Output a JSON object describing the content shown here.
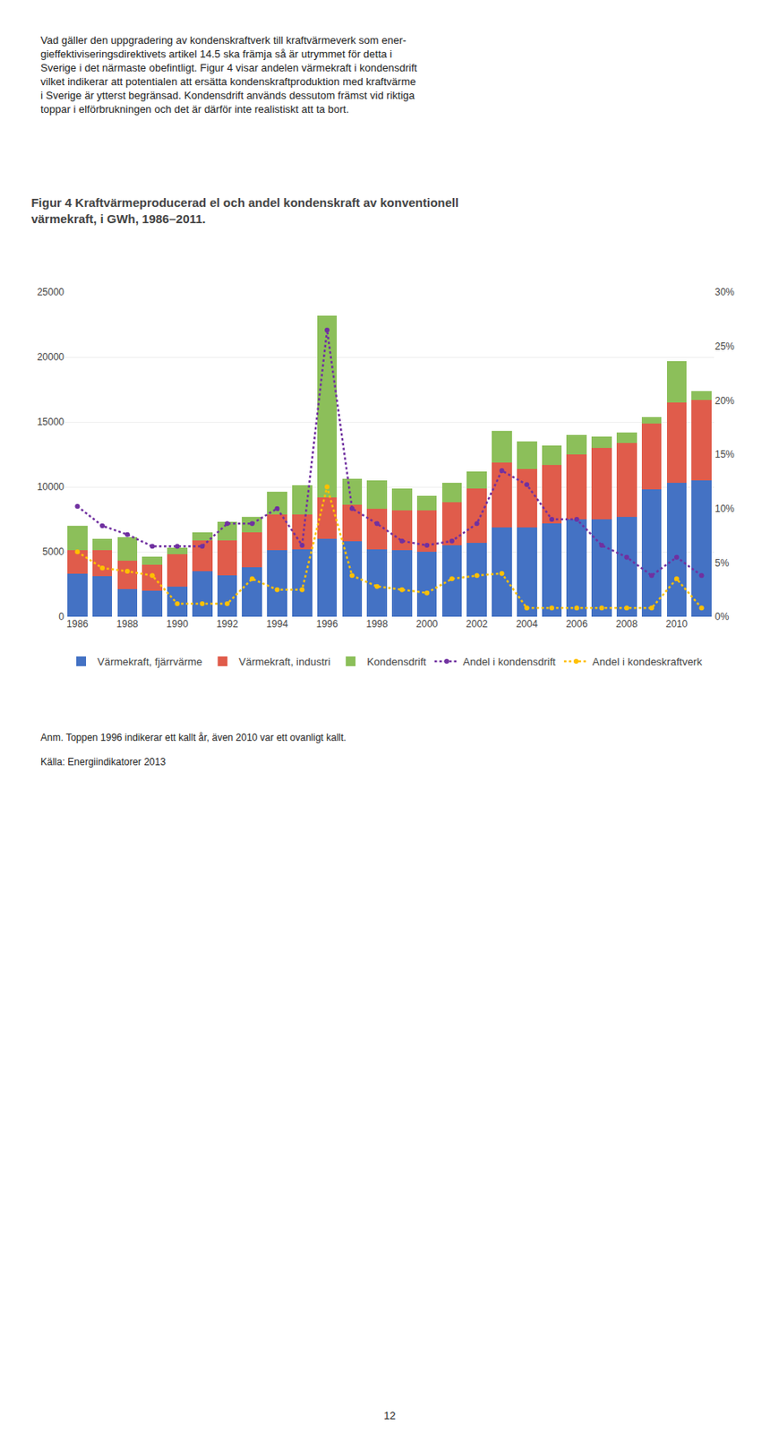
{
  "chart_data": {
    "type": "bar",
    "title": "Figur 4 Kraftvärmeproducerad el och andel kondenskraft av konventionell\nvärmekraft, i GWh, 1986–2011.",
    "categories": [
      "1986",
      null,
      "1988",
      null,
      "1990",
      null,
      "1992",
      null,
      "1994",
      null,
      "1996",
      null,
      "1998",
      null,
      "2000",
      null,
      "2002",
      null,
      "2004",
      null,
      "2006",
      null,
      "2008",
      null,
      "2010",
      null
    ],
    "series": [
      {
        "name": "Värmekraft, fjärrvärme",
        "type": "bar",
        "color": "#4472C4",
        "values": [
          3300,
          3100,
          2100,
          2000,
          2300,
          3500,
          3200,
          3800,
          5100,
          5200,
          6000,
          5800,
          5200,
          5100,
          5000,
          5500,
          5700,
          6900,
          6900,
          7200,
          7500,
          7500,
          7700,
          9800,
          10300,
          10500
        ]
      },
      {
        "name": "Värmekraft, industri",
        "type": "bar",
        "color": "#E05C4B",
        "values": [
          1800,
          2000,
          2200,
          2000,
          2500,
          2400,
          2700,
          2700,
          2800,
          2700,
          3200,
          2800,
          3100,
          3100,
          3200,
          3300,
          4200,
          5000,
          4500,
          4500,
          5000,
          5500,
          5700,
          5100,
          6200,
          6200
        ]
      },
      {
        "name": "Kondensdrift",
        "type": "bar",
        "color": "#8CBF5A",
        "values": [
          1900,
          900,
          1800,
          600,
          500,
          600,
          1400,
          1200,
          1700,
          2200,
          14000,
          2000,
          2200,
          1700,
          1100,
          1500,
          1300,
          2400,
          2100,
          1500,
          1500,
          900,
          800,
          500,
          3200,
          700
        ]
      },
      {
        "name": "Andel i kondensdrift",
        "type": "line",
        "axis": "y2",
        "color": "#7030A0",
        "marker": "circle",
        "line_style": "dotted",
        "values": [
          0.102,
          0.084,
          0.076,
          0.065,
          0.065,
          0.065,
          0.086,
          0.086,
          0.1,
          0.066,
          0.265,
          0.1,
          0.086,
          0.07,
          0.066,
          0.07,
          0.086,
          0.135,
          0.122,
          0.09,
          0.09,
          0.066,
          0.055,
          0.038,
          0.055,
          0.038
        ]
      },
      {
        "name": "Andel i kondeskraftverk",
        "type": "line",
        "axis": "y2",
        "color": "#FFC000",
        "marker": "circle",
        "line_style": "dotted",
        "values": [
          0.06,
          0.045,
          0.042,
          0.038,
          0.012,
          0.012,
          0.012,
          0.035,
          0.025,
          0.025,
          0.12,
          0.038,
          0.028,
          0.025,
          0.022,
          0.035,
          0.038,
          0.04,
          0.008,
          0.008,
          0.008,
          0.008,
          0.008,
          0.008,
          0.035,
          0.008
        ]
      }
    ],
    "stacked": true,
    "ylim": [
      0,
      25000
    ],
    "yticks": [
      0,
      5000,
      10000,
      15000,
      20000,
      25000
    ],
    "y2lim": [
      0,
      0.3
    ],
    "y2ticks": [
      {
        "value": 0.0,
        "label": "0%"
      },
      {
        "value": 0.05,
        "label": "5%"
      },
      {
        "value": 0.1,
        "label": "10%"
      },
      {
        "value": 0.15,
        "label": "15%"
      },
      {
        "value": 0.2,
        "label": "20%"
      },
      {
        "value": 0.25,
        "label": "25%"
      },
      {
        "value": 0.3,
        "label": "30%"
      }
    ],
    "grid": true,
    "legend": "bottom",
    "annotations": [
      "Vad gäller den uppgradering av kondenskraftverk till kraftvärmeverk som ener-\ngieffektiviseringsdirektivets artikel 14.5 ska främja så är utrymmet för detta i\nSverige i det närmaste obefintligt. Figur 4 visar andelen värmekraft i kondensdrift\nvilket indikerar att potentialen att ersätta kondenskraftproduktion med kraftvärme\ni Sverige är ytterst begränsad. Kondensdrift används dessutom främst vid riktiga\ntoppar i elförbrukningen och det är därför inte realistiskt att ta bort.",
      "Anm. Toppen 1996 indikerar ett kallt år, även 2010 var ett ovanligt kallt.",
      "Källa: Energiindikatorer 2013",
      "12"
    ]
  }
}
